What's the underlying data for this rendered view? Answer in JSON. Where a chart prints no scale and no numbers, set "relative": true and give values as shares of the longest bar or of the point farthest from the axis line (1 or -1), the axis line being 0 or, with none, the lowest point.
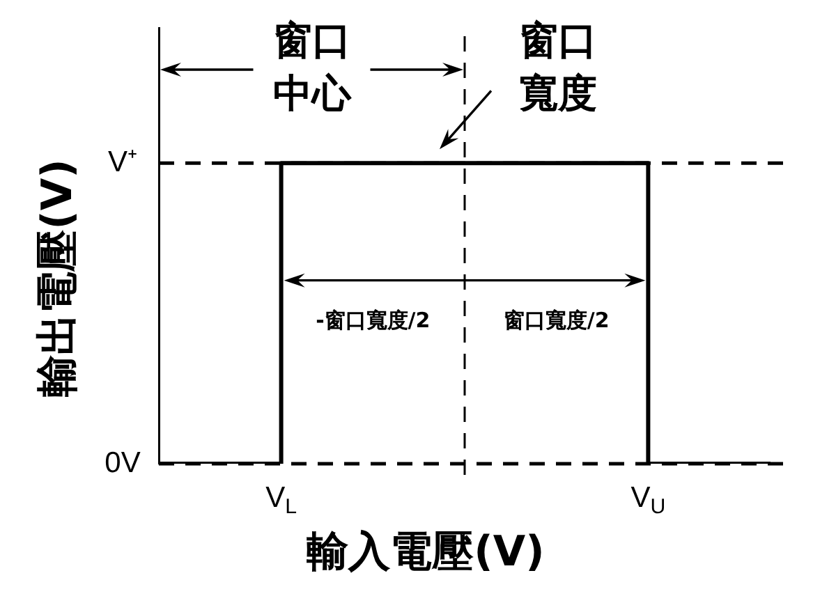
{
  "chart_data": {
    "type": "step",
    "relative": true,
    "xlabel": "輸入電壓(V)",
    "ylabel": "輸出電壓(V)",
    "categories": [
      null,
      null,
      "V$_{L}$",
      null,
      null,
      null,
      null,
      null,
      "V$_{U}$",
      null,
      null
    ],
    "values": [
      0,
      0,
      1,
      1,
      1,
      1,
      1,
      1,
      0,
      0,
      0
    ],
    "color": "#000000",
    "line_style": "solid",
    "marker": "none",
    "ref_lines": [
      {
        "axis": "y",
        "value": 1,
        "label": "V⁺",
        "color": "#000000",
        "line_style": "dashed"
      },
      {
        "axis": "y",
        "value": 0,
        "label": "0V",
        "color": "#000000",
        "line_style": "dashed"
      }
    ],
    "annotations": [
      "窗口中心",
      "窗口寬度",
      "-窗口寬度/2",
      "窗口寬度/2"
    ]
  }
}
